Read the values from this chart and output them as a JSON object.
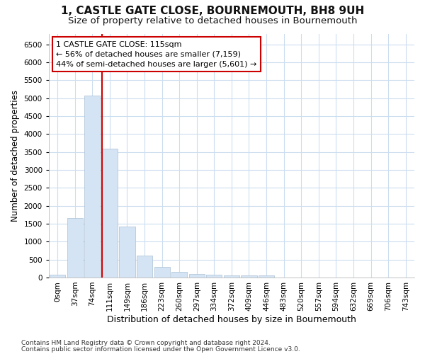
{
  "title": "1, CASTLE GATE CLOSE, BOURNEMOUTH, BH8 9UH",
  "subtitle": "Size of property relative to detached houses in Bournemouth",
  "xlabel": "Distribution of detached houses by size in Bournemouth",
  "ylabel": "Number of detached properties",
  "footer1": "Contains HM Land Registry data © Crown copyright and database right 2024.",
  "footer2": "Contains public sector information licensed under the Open Government Licence v3.0.",
  "bar_labels": [
    "0sqm",
    "37sqm",
    "74sqm",
    "111sqm",
    "149sqm",
    "186sqm",
    "223sqm",
    "260sqm",
    "297sqm",
    "334sqm",
    "372sqm",
    "409sqm",
    "446sqm",
    "483sqm",
    "520sqm",
    "557sqm",
    "594sqm",
    "632sqm",
    "669sqm",
    "706sqm",
    "743sqm"
  ],
  "bar_values": [
    75,
    1650,
    5070,
    3590,
    1420,
    620,
    295,
    148,
    100,
    75,
    55,
    55,
    55,
    0,
    0,
    0,
    0,
    0,
    0,
    0,
    0
  ],
  "bar_color": "#d4e4f4",
  "bar_edge_color": "#aabfd4",
  "vline_color": "#cc0000",
  "annotation_text": "1 CASTLE GATE CLOSE: 115sqm\n← 56% of detached houses are smaller (7,159)\n44% of semi-detached houses are larger (5,601) →",
  "annotation_box_color": "#ffffff",
  "annotation_box_edge": "#cc0000",
  "ylim": [
    0,
    6800
  ],
  "yticks": [
    0,
    500,
    1000,
    1500,
    2000,
    2500,
    3000,
    3500,
    4000,
    4500,
    5000,
    5500,
    6000,
    6500
  ],
  "bg_color": "#ffffff",
  "grid_color": "#ccddf0",
  "title_fontsize": 11,
  "subtitle_fontsize": 9.5,
  "axis_label_fontsize": 9,
  "ylabel_fontsize": 8.5,
  "tick_fontsize": 7.5,
  "footer_fontsize": 6.5
}
